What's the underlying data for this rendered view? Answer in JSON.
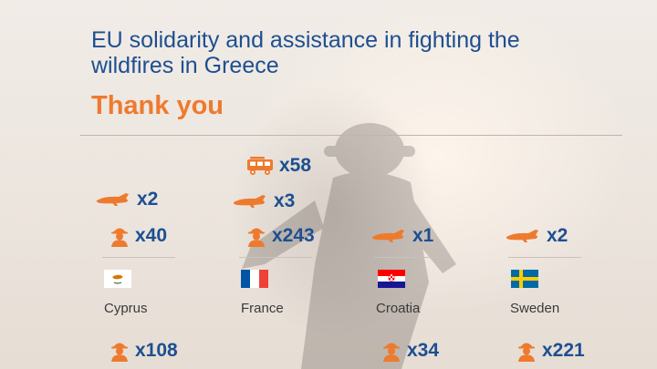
{
  "header": {
    "title": "EU solidarity and assistance in fighting the wildfires in Greece",
    "subtitle": "Thank you"
  },
  "colors": {
    "accent": "#ee7a2e",
    "text_blue": "#1d4f91"
  },
  "countries": [
    {
      "name": "Cyprus",
      "flag": "cyprus-flag",
      "stats": [
        {
          "icon": "firefighting-plane-icon",
          "label": "x2"
        },
        {
          "icon": "firefighter-icon",
          "label": "x40"
        },
        {
          "icon": "firefighter-icon",
          "label": "x108"
        }
      ]
    },
    {
      "name": "France",
      "flag": "france-flag",
      "stats": [
        {
          "icon": "fire-truck-icon",
          "label": "x58"
        },
        {
          "icon": "firefighting-plane-icon",
          "label": "x3"
        },
        {
          "icon": "firefighter-icon",
          "label": "x243"
        }
      ]
    },
    {
      "name": "Croatia",
      "flag": "croatia-flag",
      "stats": [
        {
          "icon": "firefighting-plane-icon",
          "label": "x1"
        },
        {
          "icon": "firefighter-icon",
          "label": "x34"
        }
      ]
    },
    {
      "name": "Sweden",
      "flag": "sweden-flag",
      "stats": [
        {
          "icon": "firefighting-plane-icon",
          "label": "x2"
        },
        {
          "icon": "firefighter-icon",
          "label": "x221"
        }
      ]
    }
  ]
}
